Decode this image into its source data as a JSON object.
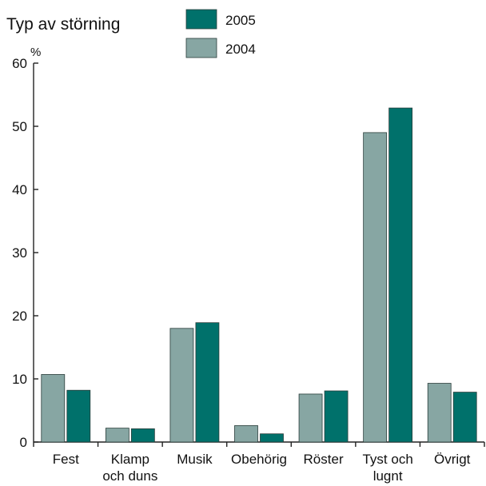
{
  "chart_data": {
    "type": "bar",
    "title": "Typ av störning",
    "ylabel": "%",
    "xlabel": "",
    "ylim": [
      0,
      60
    ],
    "yticks": [
      0,
      10,
      20,
      30,
      40,
      50,
      60
    ],
    "grid": false,
    "legend_position": "top",
    "categories": [
      [
        "Fest"
      ],
      [
        "Klamp",
        "och duns"
      ],
      [
        "Musik"
      ],
      [
        "Obehörig"
      ],
      [
        "Röster"
      ],
      [
        "Tyst och",
        "lugnt"
      ],
      [
        "Övrigt"
      ]
    ],
    "series": [
      {
        "name": "2004",
        "color": "#87a6a3",
        "values": [
          10.7,
          2.2,
          18.0,
          2.6,
          7.6,
          49.0,
          9.3
        ]
      },
      {
        "name": "2005",
        "color": "#00716b",
        "values": [
          8.2,
          2.1,
          18.9,
          1.3,
          8.1,
          52.9,
          7.9
        ]
      }
    ],
    "legend_order": [
      "2005",
      "2004"
    ]
  }
}
